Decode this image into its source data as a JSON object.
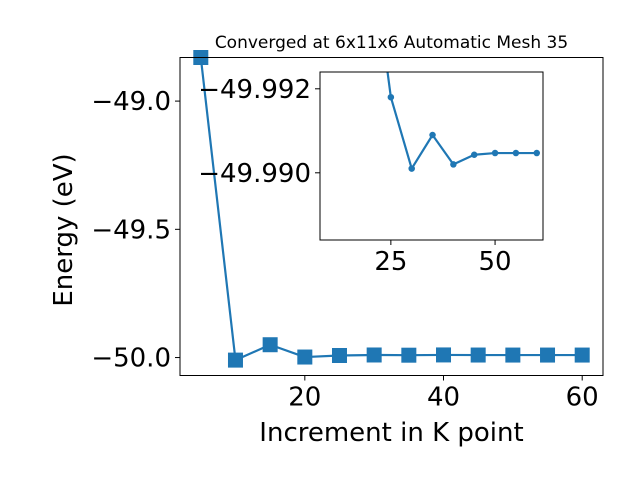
{
  "chart_data": [
    {
      "type": "line",
      "title": "Converged at 6x11x6 Automatic Mesh 35",
      "xlabel": "Increment in K point",
      "ylabel": "Energy (eV)",
      "xlim": [
        2,
        63
      ],
      "ylim": [
        -50.07,
        -48.83
      ],
      "xticks": [
        20,
        40,
        60
      ],
      "yticks": [
        -50.0,
        -49.5,
        -49.0
      ],
      "xtick_labels": [
        "20",
        "40",
        "60"
      ],
      "ytick_labels": [
        "−50.0",
        "−49.5",
        "−49.0"
      ],
      "marker": "square",
      "color": "#1f77b4",
      "grid": false,
      "series": [
        {
          "x": [
            5,
            10,
            15,
            20,
            25,
            30,
            35,
            40,
            45,
            50,
            55,
            60
          ],
          "y": [
            -48.83,
            -50.01,
            -49.95,
            -49.998,
            -49.992,
            -49.99,
            -49.9908,
            -49.9898,
            -49.9902,
            -49.9903,
            -49.9903,
            -49.9903
          ]
        }
      ]
    },
    {
      "type": "line",
      "title": "",
      "xlabel": "",
      "ylabel": "",
      "xlim": [
        8,
        61.5
      ],
      "ylim": [
        -49.9884,
        -49.9924
      ],
      "xticks": [
        25,
        50
      ],
      "yticks": [
        -49.99,
        -49.992
      ],
      "xtick_labels": [
        "25",
        "50"
      ],
      "ytick_labels": [
        "−49.990",
        "−49.992"
      ],
      "marker": "circle",
      "color": "#1f77b4",
      "grid": false,
      "series": [
        {
          "x": [
            24.2,
            25,
            30,
            35,
            40,
            45,
            50,
            55,
            60
          ],
          "y": [
            -49.9924,
            -49.9918,
            -49.9901,
            -49.9909,
            -49.9902,
            -49.99043,
            -49.99047,
            -49.99047,
            -49.99047
          ]
        }
      ]
    }
  ]
}
